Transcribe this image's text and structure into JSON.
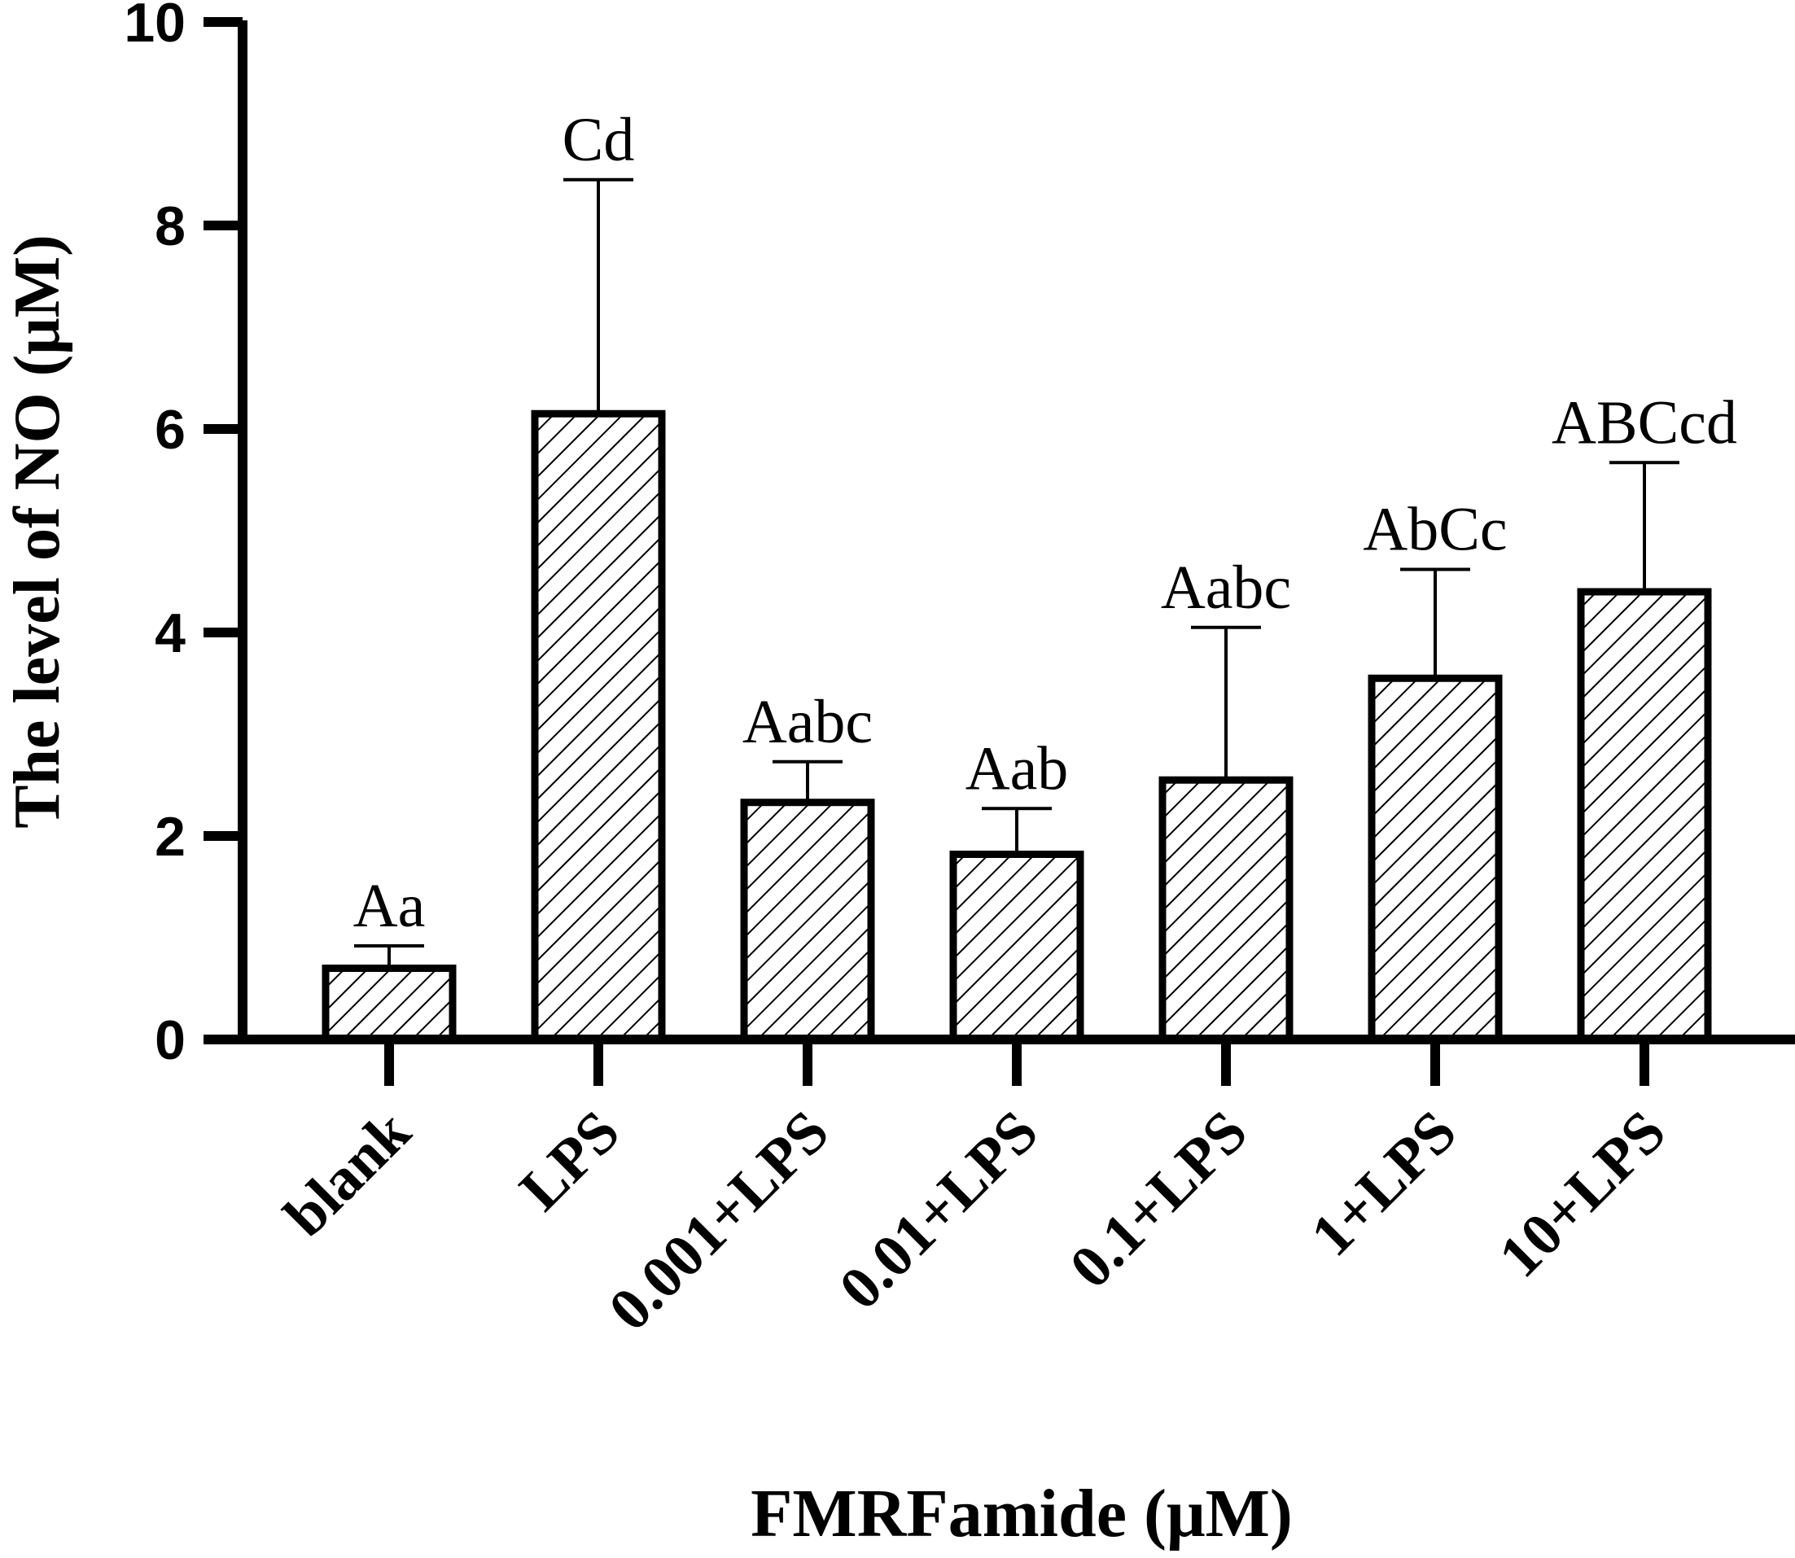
{
  "chart_data": {
    "type": "bar",
    "categories": [
      "blank",
      "LPS",
      "0.001+LPS",
      "0.01+LPS",
      "0.1+LPS",
      "1+LPS",
      "10+LPS"
    ],
    "values": [
      0.7,
      6.15,
      2.33,
      1.82,
      2.55,
      3.55,
      4.4
    ],
    "error": [
      0.22,
      2.3,
      0.4,
      0.45,
      1.5,
      1.07,
      1.27
    ],
    "significance": [
      "Aa",
      "Cd",
      "Aabc",
      "Aab",
      "Aabc",
      "AbCc",
      "ABCcd"
    ],
    "xlabel": "FMRFamide (μM)",
    "ylabel": "The level of NO (μM)",
    "ylim": [
      0,
      10
    ],
    "yticks": [
      0,
      2,
      4,
      6,
      8,
      10
    ],
    "bar_fill": "hatched",
    "grid": false
  }
}
